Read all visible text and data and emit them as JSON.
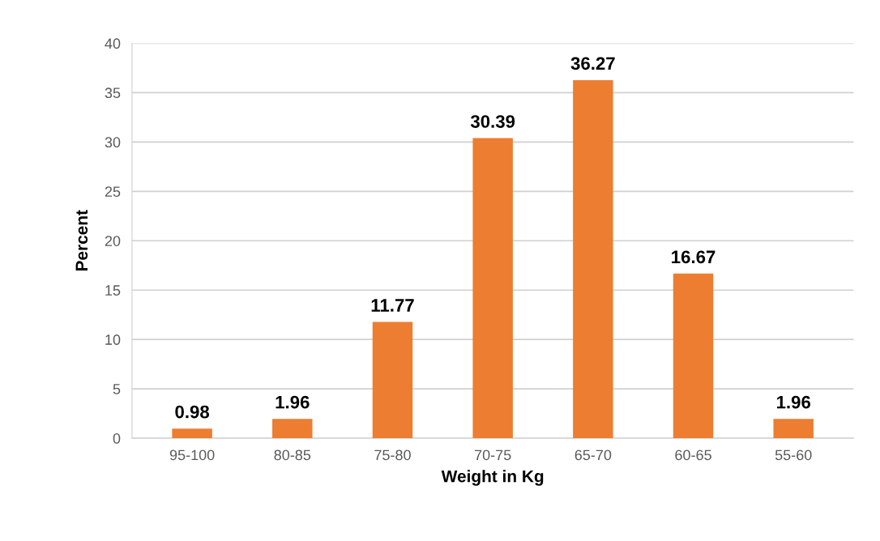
{
  "chart_data": {
    "type": "bar",
    "xlabel": "Weight in Kg",
    "ylabel": "Percent",
    "categories": [
      "95-100",
      "80-85",
      "75-80",
      "70-75",
      "65-70",
      "60-65",
      "55-60"
    ],
    "values": [
      0.98,
      1.96,
      11.77,
      30.39,
      36.27,
      16.67,
      1.96
    ],
    "color": "#ed7d31",
    "ylim": [
      0,
      40
    ],
    "yticks": [
      0,
      5,
      10,
      15,
      20,
      25,
      30,
      35,
      40
    ],
    "grid": "y",
    "data_labels": true
  }
}
